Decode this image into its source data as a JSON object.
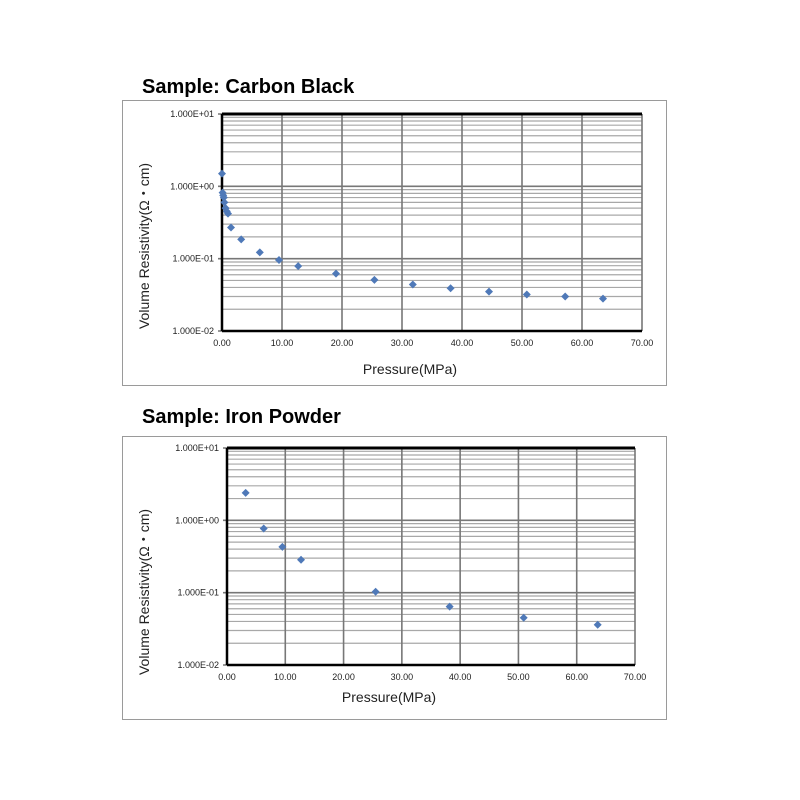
{
  "chart_data": [
    {
      "type": "scatter",
      "title": "Sample: Carbon Black",
      "xlabel": "Pressure(MPa)",
      "ylabel": "Volume Resistivity(Ω・cm)",
      "xlim": [
        0,
        70
      ],
      "ylim": [
        0.01,
        10
      ],
      "yscale": "log",
      "grid": true,
      "marker_color": "#4f79b8",
      "x_ticks": [
        "0.00",
        "10.00",
        "20.00",
        "30.00",
        "40.00",
        "50.00",
        "60.00",
        "70.00"
      ],
      "y_ticks": [
        "1.000E-02",
        "1.000E-01",
        "1.000E+00",
        "1.000E+01"
      ],
      "x": [
        0,
        0.1,
        0.2,
        0.3,
        0.4,
        0.6,
        0.8,
        1.0,
        1.5,
        3.2,
        6.3,
        9.5,
        12.7,
        19.0,
        25.4,
        31.8,
        38.1,
        44.5,
        50.8,
        57.2,
        63.5
      ],
      "y": [
        1.5,
        0.82,
        0.75,
        0.7,
        0.6,
        0.5,
        0.45,
        0.42,
        0.27,
        0.185,
        0.122,
        0.096,
        0.079,
        0.062,
        0.051,
        0.044,
        0.039,
        0.035,
        0.032,
        0.03,
        0.028
      ]
    },
    {
      "type": "scatter",
      "title": "Sample: Iron Powder",
      "xlabel": "Pressure(MPa)",
      "ylabel": "Volume Resistivity(Ω・cm)",
      "xlim": [
        0,
        70
      ],
      "ylim": [
        0.01,
        10
      ],
      "yscale": "log",
      "grid": true,
      "marker_color": "#4f79b8",
      "x_ticks": [
        "0.00",
        "10.00",
        "20.00",
        "30.00",
        "40.00",
        "50.00",
        "60.00",
        "70.00"
      ],
      "y_ticks": [
        "1.000E-02",
        "1.000E-01",
        "1.000E+00",
        "1.000E+01"
      ],
      "x": [
        3.2,
        6.3,
        9.5,
        12.7,
        25.5,
        38.2,
        50.9,
        63.6
      ],
      "y": [
        2.4,
        0.77,
        0.43,
        0.285,
        0.103,
        0.064,
        0.045,
        0.036
      ]
    }
  ]
}
